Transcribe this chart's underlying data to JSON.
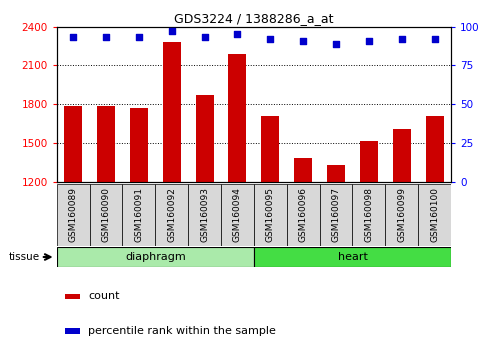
{
  "title": "GDS3224 / 1388286_a_at",
  "categories": [
    "GSM160089",
    "GSM160090",
    "GSM160091",
    "GSM160092",
    "GSM160093",
    "GSM160094",
    "GSM160095",
    "GSM160096",
    "GSM160097",
    "GSM160098",
    "GSM160099",
    "GSM160100"
  ],
  "counts": [
    1790,
    1790,
    1770,
    2280,
    1870,
    2190,
    1710,
    1390,
    1330,
    1520,
    1610,
    1710
  ],
  "percentiles": [
    93,
    93,
    93,
    97,
    93,
    95,
    92,
    91,
    89,
    91,
    92,
    92
  ],
  "ylim_left": [
    1200,
    2400
  ],
  "ylim_right": [
    0,
    100
  ],
  "yticks_left": [
    1200,
    1500,
    1800,
    2100,
    2400
  ],
  "yticks_right": [
    0,
    25,
    50,
    75,
    100
  ],
  "groups": [
    {
      "label": "diaphragm",
      "start": 0,
      "end": 6,
      "color": "#aaeaaa"
    },
    {
      "label": "heart",
      "start": 6,
      "end": 12,
      "color": "#44dd44"
    }
  ],
  "bar_color": "#cc0000",
  "dot_color": "#0000cc",
  "tissue_label": "tissue",
  "legend_items": [
    {
      "color": "#cc0000",
      "label": "count"
    },
    {
      "color": "#0000cc",
      "label": "percentile rank within the sample"
    }
  ],
  "plot_bg": "#ffffff",
  "tick_label_bg": "#d8d8d8",
  "bar_width": 0.55
}
